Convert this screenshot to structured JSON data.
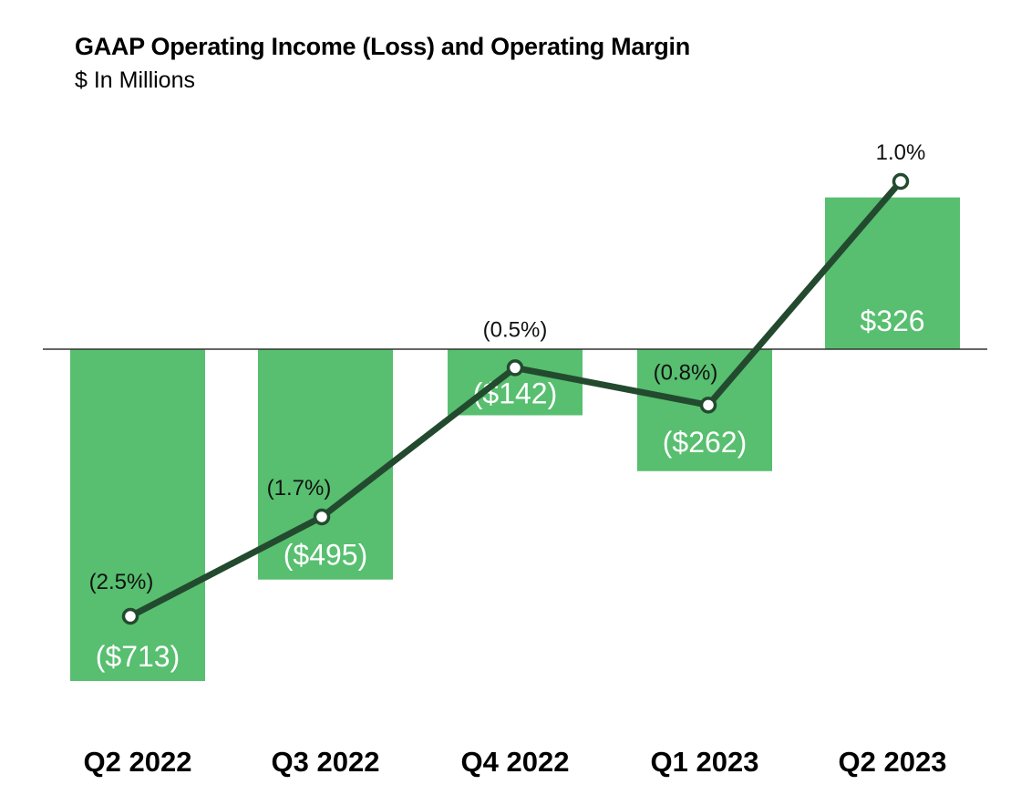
{
  "chart_data": {
    "type": "bar",
    "title": "GAAP Operating Income (Loss) and Operating Margin",
    "subtitle": "$ In Millions",
    "categories": [
      "Q2 2022",
      "Q3 2022",
      "Q4 2022",
      "Q1 2023",
      "Q2 2023"
    ],
    "series": [
      {
        "name": "GAAP Operating Income (Loss)",
        "type": "bar",
        "values": [
          -713,
          -495,
          -142,
          -262,
          326
        ],
        "labels": [
          "($713)",
          "($495)",
          "($142)",
          "($262)",
          "$326"
        ]
      },
      {
        "name": "Operating Margin",
        "type": "line",
        "values": [
          -2.5,
          -1.7,
          -0.5,
          -0.8,
          1.0
        ],
        "labels": [
          "(2.5%)",
          "(1.7%)",
          "(0.5%)",
          "(0.8%)",
          "1.0%"
        ]
      }
    ],
    "ylim": [
      -760,
      380
    ],
    "margin_ylim": [
      -2.6,
      1.1
    ],
    "xlabel": "",
    "ylabel": ""
  },
  "colors": {
    "bar": "#57bf6f",
    "line": "#234a2f",
    "axis": "#333333",
    "bar_label": "#ffffff",
    "margin_label": "#111111"
  }
}
